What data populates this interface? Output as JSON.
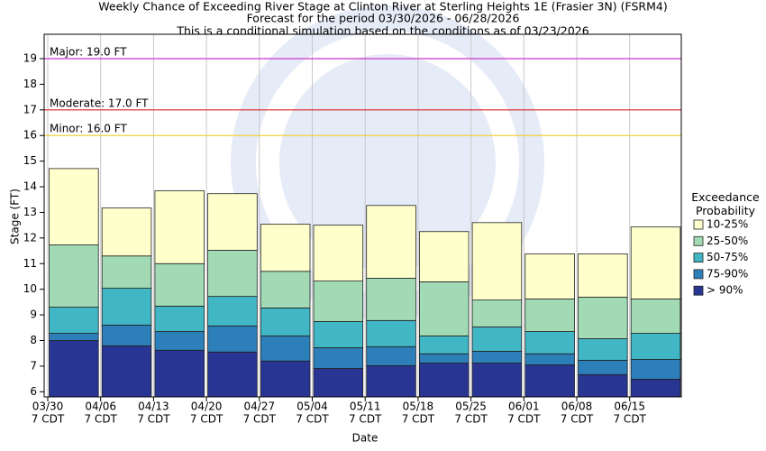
{
  "chart_data": {
    "type": "range-bar",
    "title": "Weekly Chance of Exceeding River Stage at Clinton River at Sterling Heights 1E (Frasier 3N) (FSRM4)",
    "subtitle": "Forecast for the period 03/30/2026 - 06/28/2026",
    "subtitle2": "This is a conditional simulation based on the conditions as of 03/23/2026",
    "subtitle3": "",
    "x_label": "Date",
    "y_label": "Stage (FT)",
    "legend_title": "Exceedance Probability",
    "categories": [
      "03/30",
      "04/06",
      "04/13",
      "04/20",
      "04/27",
      "05/04",
      "05/11",
      "05/18",
      "05/25",
      "06/01",
      "06/08",
      "06/15"
    ],
    "category_times": [
      "7 CDT",
      "7 CDT",
      "7 CDT",
      "7 CDT",
      "7 CDT",
      "7 CDT",
      "7 CDT",
      "7 CDT",
      "7 CDT",
      "7 CDT",
      "7 CDT",
      "7 CDT"
    ],
    "series": [
      {
        "name": "> 90%",
        "color": "#283593",
        "values": [
          8.0,
          7.79,
          7.62,
          7.55,
          7.2,
          6.91,
          7.02,
          7.12,
          7.12,
          7.05,
          6.67,
          6.49
        ]
      },
      {
        "name": "75-90%",
        "color": "#2c7fb8",
        "values": [
          8.28,
          8.6,
          8.35,
          8.57,
          8.18,
          7.72,
          7.76,
          7.48,
          7.58,
          7.48,
          7.23,
          7.26
        ]
      },
      {
        "name": "50-75%",
        "color": "#41b6c4",
        "values": [
          9.3,
          10.04,
          9.34,
          9.72,
          9.27,
          8.74,
          8.78,
          8.18,
          8.53,
          8.35,
          8.07,
          8.28
        ]
      },
      {
        "name": "25-50%",
        "color": "#a1dab4",
        "values": [
          11.73,
          11.3,
          11.0,
          11.52,
          10.7,
          10.32,
          10.43,
          10.29,
          9.58,
          9.62,
          9.69,
          9.62
        ]
      },
      {
        "name": "10-25%",
        "color": "#ffffcc",
        "values": [
          14.71,
          13.17,
          13.84,
          13.73,
          12.54,
          12.5,
          13.27,
          12.25,
          12.6,
          11.38,
          11.38,
          12.43
        ]
      }
    ],
    "thresholds": [
      {
        "label": "Major: 19.0 FT",
        "value": 19.0,
        "color": "#cc33cc"
      },
      {
        "label": "Moderate: 17.0 FT",
        "value": 17.0,
        "color": "#dd2222"
      },
      {
        "label": "Minor: 16.0 FT",
        "value": 16.0,
        "color": "#f0d040"
      }
    ],
    "ylim": [
      5.8,
      19.95
    ],
    "yticks": [
      6,
      7,
      8,
      9,
      10,
      11,
      12,
      13,
      14,
      15,
      16,
      17,
      18,
      19
    ],
    "grid": true,
    "legend_position": "right"
  }
}
